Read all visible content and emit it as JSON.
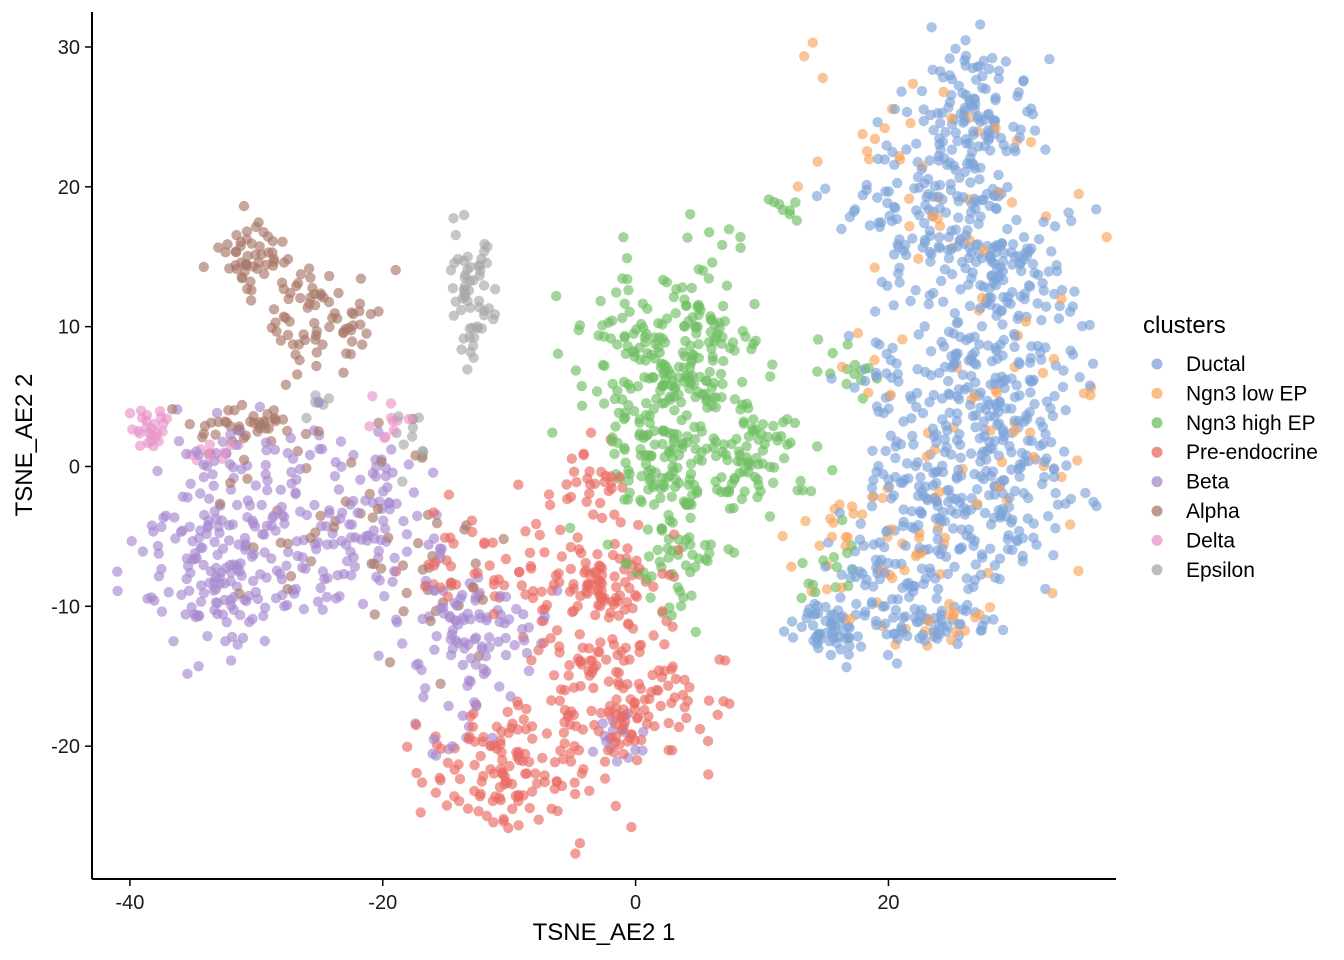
{
  "chart_data": {
    "type": "scatter",
    "xlabel": "TSNE_AE2 1",
    "ylabel": "TSNE_AE2 2",
    "xlim": [
      -43,
      38
    ],
    "ylim": [
      -29.5,
      32.5
    ],
    "x_ticks": [
      -40,
      -20,
      0,
      20
    ],
    "y_ticks": [
      -20,
      -10,
      0,
      10,
      20,
      30
    ],
    "grid": false,
    "legend": {
      "title": "clusters",
      "placement": "right"
    },
    "marker_alpha": 0.65,
    "series": [
      {
        "name": "Ductal",
        "color": "#7da3d8",
        "clusters": [
          {
            "cx": 27,
            "cy": 25,
            "sx": 2.3,
            "sy": 2.8,
            "n": 120
          },
          {
            "cx": 24,
            "cy": 18,
            "sx": 4.0,
            "sy": 2.8,
            "n": 150
          },
          {
            "cx": 29,
            "cy": 14,
            "sx": 2.5,
            "sy": 2.5,
            "n": 80
          },
          {
            "cx": 27,
            "cy": 6,
            "sx": 4.0,
            "sy": 3.5,
            "n": 220
          },
          {
            "cx": 26,
            "cy": -3,
            "sx": 4.5,
            "sy": 3.5,
            "n": 220
          },
          {
            "cx": 20,
            "cy": -8,
            "sx": 2.5,
            "sy": 2.5,
            "n": 60
          },
          {
            "cx": 15,
            "cy": -11.5,
            "sx": 1.5,
            "sy": 0.9,
            "n": 50
          },
          {
            "cx": 23.5,
            "cy": -11,
            "sx": 2.5,
            "sy": 0.9,
            "n": 45
          }
        ]
      },
      {
        "name": "Ngn3 low EP",
        "color": "#f9a55c",
        "clusters": [
          {
            "cx": 23,
            "cy": 20,
            "sx": 5.5,
            "sy": 5.0,
            "n": 35
          },
          {
            "cx": 29,
            "cy": 4,
            "sx": 5.5,
            "sy": 7.0,
            "n": 60
          },
          {
            "cx": 19,
            "cy": -6,
            "sx": 3.0,
            "sy": 3.0,
            "n": 40
          },
          {
            "cx": 23,
            "cy": -11,
            "sx": 3.0,
            "sy": 1.0,
            "n": 15
          }
        ]
      },
      {
        "name": "Ngn3 high EP",
        "color": "#6fbf62",
        "clusters": [
          {
            "cx": 3,
            "cy": 7,
            "sx": 3.5,
            "sy": 4.0,
            "n": 260
          },
          {
            "cx": 2,
            "cy": 0,
            "sx": 2.5,
            "sy": 2.5,
            "n": 80
          },
          {
            "cx": 10,
            "cy": 0.5,
            "sx": 2.5,
            "sy": 1.8,
            "n": 70
          },
          {
            "cx": 3,
            "cy": -7,
            "sx": 2.0,
            "sy": 2.2,
            "n": 50
          },
          {
            "cx": 12,
            "cy": 18.5,
            "sx": 0.6,
            "sy": 0.5,
            "n": 8
          },
          {
            "cx": 17,
            "cy": 7,
            "sx": 1.5,
            "sy": 1.2,
            "n": 12
          },
          {
            "cx": 15.5,
            "cy": -7,
            "sx": 1.5,
            "sy": 2.0,
            "n": 15
          }
        ]
      },
      {
        "name": "Pre-endocrine",
        "color": "#ea6a62",
        "clusters": [
          {
            "cx": -4,
            "cy": -1,
            "sx": 2.0,
            "sy": 1.8,
            "n": 30
          },
          {
            "cx": -2,
            "cy": -9,
            "sx": 2.5,
            "sy": 2.5,
            "n": 100
          },
          {
            "cx": -1,
            "cy": -17,
            "sx": 3.5,
            "sy": 2.5,
            "n": 130
          },
          {
            "cx": -10,
            "cy": -22,
            "sx": 3.5,
            "sy": 2.5,
            "n": 130
          },
          {
            "cx": -13,
            "cy": -7,
            "sx": 3.0,
            "sy": 2.0,
            "n": 40
          },
          {
            "cx": -7,
            "cy": -10,
            "sx": 1.8,
            "sy": 2.5,
            "n": 30
          }
        ]
      },
      {
        "name": "Beta",
        "color": "#a688cf",
        "clusters": [
          {
            "cx": -34,
            "cy": -8,
            "sx": 2.5,
            "sy": 3.0,
            "n": 110
          },
          {
            "cx": -27,
            "cy": -5,
            "sx": 4.0,
            "sy": 3.5,
            "n": 130
          },
          {
            "cx": -20,
            "cy": -3,
            "sx": 2.5,
            "sy": 2.5,
            "n": 50
          },
          {
            "cx": -14,
            "cy": -12,
            "sx": 3.0,
            "sy": 3.0,
            "n": 100
          },
          {
            "cx": -31,
            "cy": 1,
            "sx": 3.5,
            "sy": 1.0,
            "n": 30
          },
          {
            "cx": -14,
            "cy": -19,
            "sx": 1.5,
            "sy": 1.2,
            "n": 10
          },
          {
            "cx": -1,
            "cy": -19.5,
            "sx": 1.2,
            "sy": 0.8,
            "n": 15
          }
        ]
      },
      {
        "name": "Alpha",
        "color": "#a97868",
        "clusters": [
          {
            "cx": -30,
            "cy": 15,
            "sx": 2.0,
            "sy": 1.2,
            "n": 50
          },
          {
            "cx": -25,
            "cy": 11,
            "sx": 2.5,
            "sy": 2.0,
            "n": 70
          },
          {
            "cx": -31,
            "cy": 3,
            "sx": 2.0,
            "sy": 0.6,
            "n": 35
          },
          {
            "cx": -24,
            "cy": -2,
            "sx": 5.0,
            "sy": 4.0,
            "n": 40
          },
          {
            "cx": -16,
            "cy": -9,
            "sx": 3.0,
            "sy": 2.5,
            "n": 25
          }
        ]
      },
      {
        "name": "Delta",
        "color": "#e993c9",
        "clusters": [
          {
            "cx": -38,
            "cy": 3,
            "sx": 0.8,
            "sy": 0.9,
            "n": 25
          },
          {
            "cx": -33,
            "cy": 1,
            "sx": 1.2,
            "sy": 0.6,
            "n": 10
          },
          {
            "cx": -20,
            "cy": 3.2,
            "sx": 1.0,
            "sy": 1.0,
            "n": 10
          }
        ]
      },
      {
        "name": "Epsilon",
        "color": "#a8a8a8",
        "clusters": [
          {
            "cx": -13,
            "cy": 13,
            "sx": 1.0,
            "sy": 3.0,
            "n": 50
          },
          {
            "cx": -13,
            "cy": 8.5,
            "sx": 0.6,
            "sy": 1.0,
            "n": 8
          },
          {
            "cx": -25,
            "cy": 4.5,
            "sx": 0.8,
            "sy": 0.4,
            "n": 6
          },
          {
            "cx": -17.5,
            "cy": 1.5,
            "sx": 0.8,
            "sy": 1.2,
            "n": 10
          }
        ]
      }
    ]
  }
}
